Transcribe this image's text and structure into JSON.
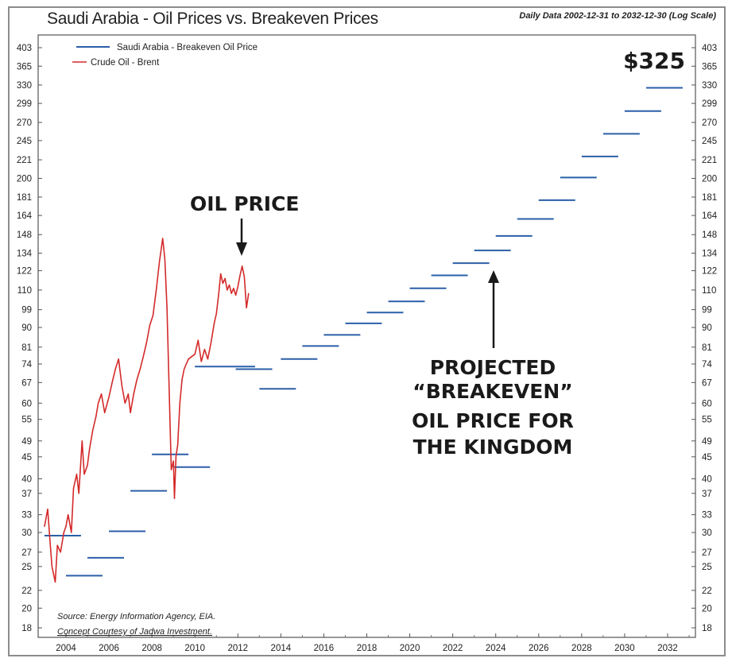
{
  "chart_data": {
    "type": "line",
    "title": "Saudi Arabia - Oil Prices vs. Breakeven Prices",
    "subtitle": "Daily Data 2002-12-31 to 2032-12-30 (Log Scale)",
    "xlabel": "",
    "ylabel": "",
    "y_scale": "log",
    "ylim": [
      17.5,
      420
    ],
    "xlim": [
      2002.9,
      2033.5
    ],
    "grid": false,
    "legend_placement": "top-left",
    "y_ticks": [
      403,
      365,
      330,
      299,
      270,
      245,
      221,
      200,
      181,
      164,
      148,
      134,
      122,
      110,
      99,
      90,
      81,
      74,
      67,
      60,
      55,
      49,
      45,
      40,
      37,
      33,
      30,
      27,
      25,
      22,
      20,
      18
    ],
    "x_ticks": [
      2004,
      2006,
      2008,
      2010,
      2012,
      2014,
      2016,
      2018,
      2020,
      2022,
      2024,
      2026,
      2028,
      2030,
      2032
    ],
    "legend": [
      {
        "name": "Saudi Arabia - Breakeven Oil Price",
        "color": "#2b5fa8"
      },
      {
        "name": "Crude Oil - Brent",
        "color": "#d42a2a"
      }
    ],
    "series": [
      {
        "name": "Crude Oil - Brent",
        "color": "#d42a2a",
        "x": [
          2003.0,
          2003.15,
          2003.25,
          2003.35,
          2003.5,
          2003.6,
          2003.75,
          2003.9,
          2004.0,
          2004.1,
          2004.25,
          2004.35,
          2004.5,
          2004.6,
          2004.75,
          2004.85,
          2005.0,
          2005.1,
          2005.25,
          2005.4,
          2005.5,
          2005.65,
          2005.8,
          2006.0,
          2006.15,
          2006.3,
          2006.45,
          2006.6,
          2006.75,
          2006.9,
          2007.0,
          2007.15,
          2007.3,
          2007.45,
          2007.6,
          2007.75,
          2007.9,
          2008.05,
          2008.2,
          2008.35,
          2008.5,
          2008.6,
          2008.7,
          2008.8,
          2008.9,
          2009.0,
          2009.05,
          2009.12,
          2009.2,
          2009.3,
          2009.4,
          2009.5,
          2009.6,
          2009.7,
          2009.85,
          2010.0,
          2010.15,
          2010.3,
          2010.45,
          2010.6,
          2010.75,
          2010.9,
          2011.0,
          2011.1,
          2011.2,
          2011.3,
          2011.4,
          2011.5,
          2011.6,
          2011.7,
          2011.8,
          2011.9,
          2012.0,
          2012.1,
          2012.2,
          2012.3,
          2012.4,
          2012.5
        ],
        "values": [
          31,
          34,
          29,
          25,
          23,
          28,
          27,
          30,
          31,
          33,
          30,
          38,
          41,
          37,
          49,
          41,
          43,
          47,
          52,
          56,
          60,
          63,
          57,
          62,
          67,
          72,
          76,
          66,
          60,
          63,
          57,
          63,
          68,
          72,
          77,
          83,
          91,
          96,
          110,
          128,
          145,
          130,
          100,
          65,
          42,
          44,
          36,
          45,
          48,
          60,
          68,
          72,
          74,
          76,
          77,
          78,
          84,
          75,
          80,
          76,
          83,
          92,
          97,
          107,
          120,
          114,
          117,
          110,
          113,
          108,
          111,
          107,
          112,
          119,
          125,
          118,
          100,
          108
        ]
      },
      {
        "name": "Saudi Arabia - Breakeven Oil Price",
        "color": "#2b5fa8",
        "type": "step-segments",
        "segments": [
          {
            "x_start": 2003.0,
            "x_end": 2004.7,
            "value": 29.5
          },
          {
            "x_start": 2004.0,
            "x_end": 2005.7,
            "value": 23.8
          },
          {
            "x_start": 2005.0,
            "x_end": 2006.7,
            "value": 26.2
          },
          {
            "x_start": 2006.0,
            "x_end": 2007.7,
            "value": 30.2
          },
          {
            "x_start": 2007.0,
            "x_end": 2008.7,
            "value": 37.5
          },
          {
            "x_start": 2008.0,
            "x_end": 2009.7,
            "value": 45.6
          },
          {
            "x_start": 2009.0,
            "x_end": 2010.7,
            "value": 42.6
          },
          {
            "x_start": 2010.0,
            "x_end": 2012.8,
            "value": 73.0
          },
          {
            "x_start": 2011.9,
            "x_end": 2013.6,
            "value": 72.0
          },
          {
            "x_start": 2013.0,
            "x_end": 2014.7,
            "value": 64.8
          },
          {
            "x_start": 2014.0,
            "x_end": 2015.7,
            "value": 76.0
          },
          {
            "x_start": 2015.0,
            "x_end": 2016.7,
            "value": 81.5
          },
          {
            "x_start": 2016.0,
            "x_end": 2017.7,
            "value": 86.5
          },
          {
            "x_start": 2017.0,
            "x_end": 2018.7,
            "value": 92.0
          },
          {
            "x_start": 2018.0,
            "x_end": 2019.7,
            "value": 97.5
          },
          {
            "x_start": 2019.0,
            "x_end": 2020.7,
            "value": 103.5
          },
          {
            "x_start": 2020.0,
            "x_end": 2021.7,
            "value": 111.0
          },
          {
            "x_start": 2021.0,
            "x_end": 2022.7,
            "value": 119.0
          },
          {
            "x_start": 2022.0,
            "x_end": 2023.7,
            "value": 127.0
          },
          {
            "x_start": 2023.0,
            "x_end": 2024.7,
            "value": 136.0
          },
          {
            "x_start": 2024.0,
            "x_end": 2025.7,
            "value": 147.0
          },
          {
            "x_start": 2025.0,
            "x_end": 2026.7,
            "value": 161.0
          },
          {
            "x_start": 2026.0,
            "x_end": 2027.7,
            "value": 178.0
          },
          {
            "x_start": 2027.0,
            "x_end": 2028.7,
            "value": 201.0
          },
          {
            "x_start": 2028.0,
            "x_end": 2029.7,
            "value": 225.0
          },
          {
            "x_start": 2029.0,
            "x_end": 2030.7,
            "value": 254.0
          },
          {
            "x_start": 2030.0,
            "x_end": 2031.7,
            "value": 287.0
          },
          {
            "x_start": 2031.0,
            "x_end": 2032.7,
            "value": 325.0
          }
        ]
      }
    ],
    "annotations": [
      {
        "text": "OIL PRICE",
        "points_to": "Crude Oil - Brent 2012 peak"
      },
      {
        "text_lines": [
          "PROJECTED",
          "“BREAKEVEN”",
          "OIL PRICE FOR",
          "THE KINGDOM"
        ],
        "points_to": "Breakeven 2024"
      },
      {
        "text": "$325",
        "points_to": "Breakeven 2032"
      }
    ],
    "source_lines": [
      "Source: Energy Information Agency, EIA.",
      "Concept Courtesy of Jadwa Investment."
    ]
  }
}
